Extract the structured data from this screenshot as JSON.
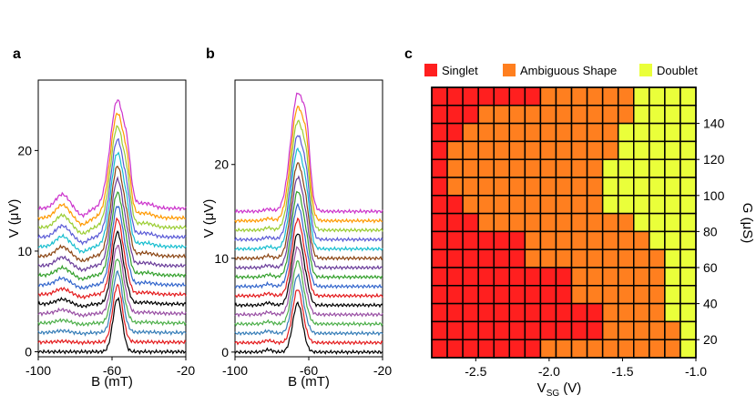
{
  "chart_data": [
    {
      "type": "line",
      "panel": "a",
      "title": "",
      "xlabel": "B (mT)",
      "ylabel": "V (μV)",
      "xlim": [
        -100,
        -20
      ],
      "ylim": [
        -0.5,
        27
      ],
      "x_ticks": [
        -100,
        -60,
        -20
      ],
      "y_ticks": [
        0,
        10,
        20
      ],
      "trace_offset_uV": 0.95,
      "num_traces": 16,
      "series_colors": [
        "#000000",
        "#e41a1c",
        "#377eb8",
        "#4daf4a",
        "#984ea3",
        "#000000",
        "#e41a1c",
        "#3366cc",
        "#33a02c",
        "#6a3d9a",
        "#8b4513",
        "#17becf",
        "#5b5bd6",
        "#9acd32",
        "#ff9900",
        "#cc33cc"
      ],
      "peak_center_mT": -57,
      "base_peak_height_uV": 5.3,
      "top_trace_peak_uV": 25.0
    },
    {
      "type": "line",
      "panel": "b",
      "title": "",
      "xlabel": "B (mT)",
      "ylabel": "V (μV)",
      "xlim": [
        -100,
        -20
      ],
      "ylim": [
        -0.5,
        29
      ],
      "x_ticks": [
        -100,
        -60,
        -20
      ],
      "y_ticks": [
        0,
        10,
        20
      ],
      "trace_offset_uV": 1.0,
      "num_traces": 16,
      "series_colors": [
        "#000000",
        "#e41a1c",
        "#377eb8",
        "#4daf4a",
        "#984ea3",
        "#000000",
        "#e41a1c",
        "#3366cc",
        "#33a02c",
        "#6a3d9a",
        "#8b4513",
        "#17becf",
        "#5b5bd6",
        "#9acd32",
        "#ff9900",
        "#cc33cc"
      ],
      "peak_center_mT": -66,
      "base_peak_height_uV": 5.2,
      "top_trace_peak_uV": 27.5
    },
    {
      "type": "heatmap",
      "panel": "c",
      "title": "",
      "xlabel": "V_SG (V)",
      "ylabel": "G (μS)",
      "x_ticks": [
        -2.5,
        -2.0,
        -1.5,
        -1.0
      ],
      "y_ticks": [
        20,
        40,
        60,
        80,
        100,
        120,
        140
      ],
      "xlim": [
        -2.8,
        -1.0
      ],
      "ylim": [
        10,
        160
      ],
      "legend": [
        {
          "label": "Singlet",
          "code": "S",
          "color": "#ff1f1f"
        },
        {
          "label": "Ambiguous Shape",
          "code": "A",
          "color": "#ff7f1f"
        },
        {
          "label": "Doublet",
          "code": "D",
          "color": "#eaff3a"
        }
      ],
      "rows_top_to_bottom": [
        "SSSSSSSAAAAAADDDD",
        "SSSAAAAAAAAAADDDD",
        "SSAAAAAAAAAADDDDD",
        "SAAAAAAAAAAADDDDD",
        "SAAAAAAAAAADDDDDD",
        "SAAAAAAAAAADDDDDD",
        "SSAAAAAAAAADDDDDD",
        "SSSAAAAAAAAAADDDD",
        "SSSSSSAAAAAAAADDD",
        "SSSSSSAAAAAAAAADD",
        "SSSSSSSSSAAAAAADD",
        "SSSSSSSSSAAAAAADD",
        "SSSSSSSSSSSAAAADD",
        "SSSSSSSSSSSAAAAAD",
        "SSSSSSSAAAAAAAAAD"
      ]
    }
  ]
}
